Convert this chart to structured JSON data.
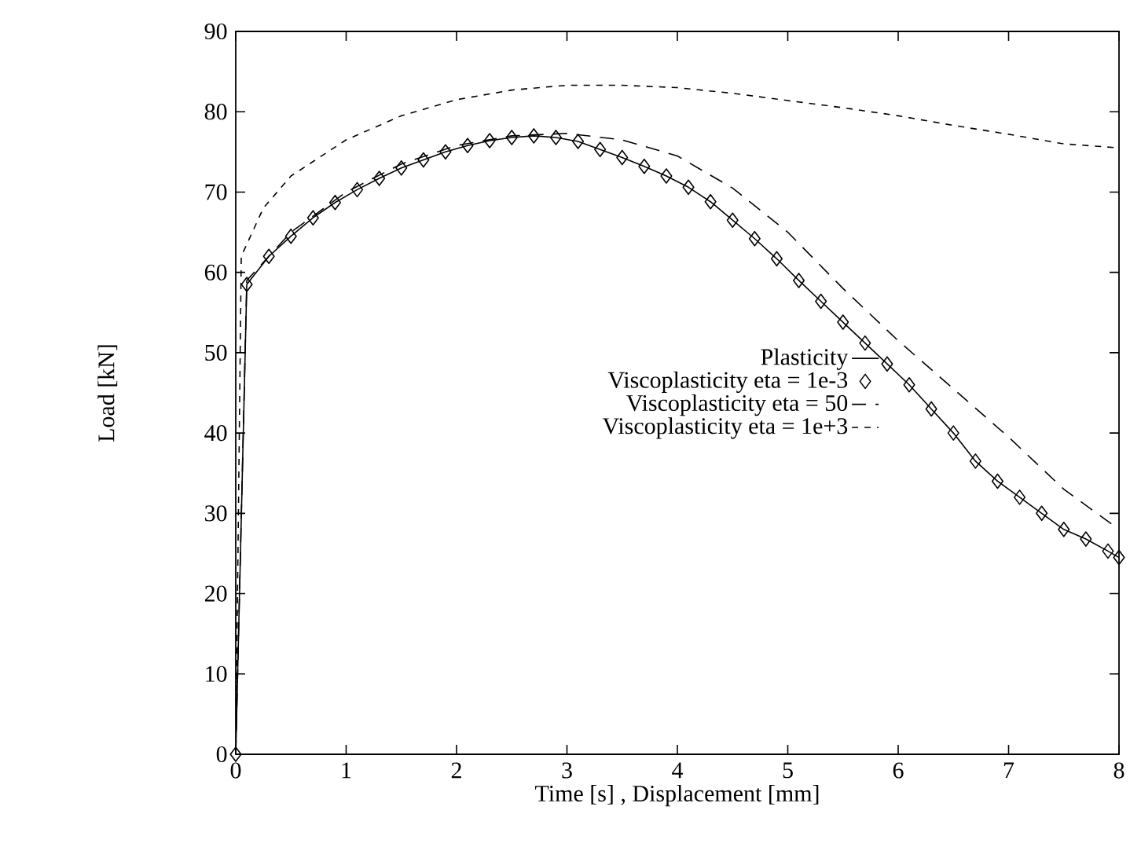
{
  "chart_data": {
    "type": "line",
    "xlabel": "Time [s] , Displacement [mm]",
    "ylabel": "Load [kN]",
    "xlim": [
      0,
      8
    ],
    "ylim": [
      0,
      90
    ],
    "xticks": [
      0,
      1,
      2,
      3,
      4,
      5,
      6,
      7,
      8
    ],
    "yticks": [
      0,
      10,
      20,
      30,
      40,
      50,
      60,
      70,
      80,
      90
    ],
    "grid": false,
    "legend": "right",
    "series": [
      {
        "name": "Plasticity",
        "color": "#000000",
        "marker": "none",
        "line_style": "solid",
        "x": [
          0,
          0.1,
          0.3,
          0.5,
          0.7,
          0.9,
          1.1,
          1.3,
          1.5,
          1.7,
          1.9,
          2.1,
          2.3,
          2.5,
          2.7,
          2.9,
          3.1,
          3.3,
          3.5,
          3.7,
          3.9,
          4.1,
          4.3,
          4.5,
          4.7,
          4.9,
          5.1,
          5.3,
          5.5,
          5.7,
          5.9,
          6.1,
          6.3,
          6.5,
          6.7,
          6.9,
          7.1,
          7.3,
          7.5,
          7.7,
          7.9,
          8
        ],
        "values": [
          0,
          58.5,
          62,
          64.5,
          66.8,
          68.7,
          70.3,
          71.7,
          73,
          74,
          75,
          75.8,
          76.4,
          76.8,
          77,
          76.8,
          76.3,
          75.3,
          74.3,
          73.2,
          72,
          70.6,
          68.8,
          66.5,
          64.2,
          61.7,
          59,
          56.4,
          53.8,
          51.2,
          48.6,
          46,
          43,
          40,
          36.5,
          34,
          32,
          30,
          28,
          26.8,
          25.3,
          24.5
        ]
      },
      {
        "name": "Viscoplasticity eta = 1e-3",
        "color": "#000000",
        "type": "scatter",
        "marker": "diamond",
        "x": [
          0,
          0.1,
          0.3,
          0.5,
          0.7,
          0.9,
          1.1,
          1.3,
          1.5,
          1.7,
          1.9,
          2.1,
          2.3,
          2.5,
          2.7,
          2.9,
          3.1,
          3.3,
          3.5,
          3.7,
          3.9,
          4.1,
          4.3,
          4.5,
          4.7,
          4.9,
          5.1,
          5.3,
          5.5,
          5.7,
          5.9,
          6.1,
          6.3,
          6.5,
          6.7,
          6.9,
          7.1,
          7.3,
          7.5,
          7.7,
          7.9,
          8
        ],
        "values": [
          0,
          58.5,
          62,
          64.5,
          66.8,
          68.7,
          70.3,
          71.7,
          73,
          74,
          75,
          75.8,
          76.4,
          76.8,
          77,
          76.8,
          76.3,
          75.3,
          74.3,
          73.2,
          72,
          70.6,
          68.8,
          66.5,
          64.2,
          61.7,
          59,
          56.4,
          53.8,
          51.2,
          48.6,
          46,
          43,
          40,
          36.5,
          34,
          32,
          30,
          28,
          26.8,
          25.3,
          24.5
        ]
      },
      {
        "name": "Viscoplasticity eta = 50",
        "color": "#000000",
        "marker": "none",
        "line_style": "dashed",
        "x": [
          0,
          0.1,
          0.5,
          1,
          1.5,
          2,
          2.5,
          3,
          3.5,
          4,
          4.5,
          5,
          5.5,
          6,
          6.5,
          7,
          7.5,
          8
        ],
        "values": [
          0,
          59,
          65,
          70,
          73.5,
          75.8,
          77,
          77.3,
          76.5,
          74.5,
          70.5,
          65,
          58,
          51.5,
          45.5,
          39.5,
          33,
          28
        ]
      },
      {
        "name": "Viscoplasticity eta = 1e+3",
        "color": "#000000",
        "marker": "none",
        "line_style": "dotted",
        "x": [
          0,
          0.05,
          0.25,
          0.5,
          1,
          1.5,
          2,
          2.5,
          3,
          3.5,
          4,
          4.5,
          5,
          5.5,
          6,
          6.5,
          7,
          7.5,
          8
        ],
        "values": [
          0,
          62,
          68,
          72,
          76.5,
          79.5,
          81.5,
          82.7,
          83.3,
          83.3,
          83,
          82.3,
          81.4,
          80.5,
          79.5,
          78.3,
          77.2,
          76,
          75.5
        ]
      }
    ]
  }
}
